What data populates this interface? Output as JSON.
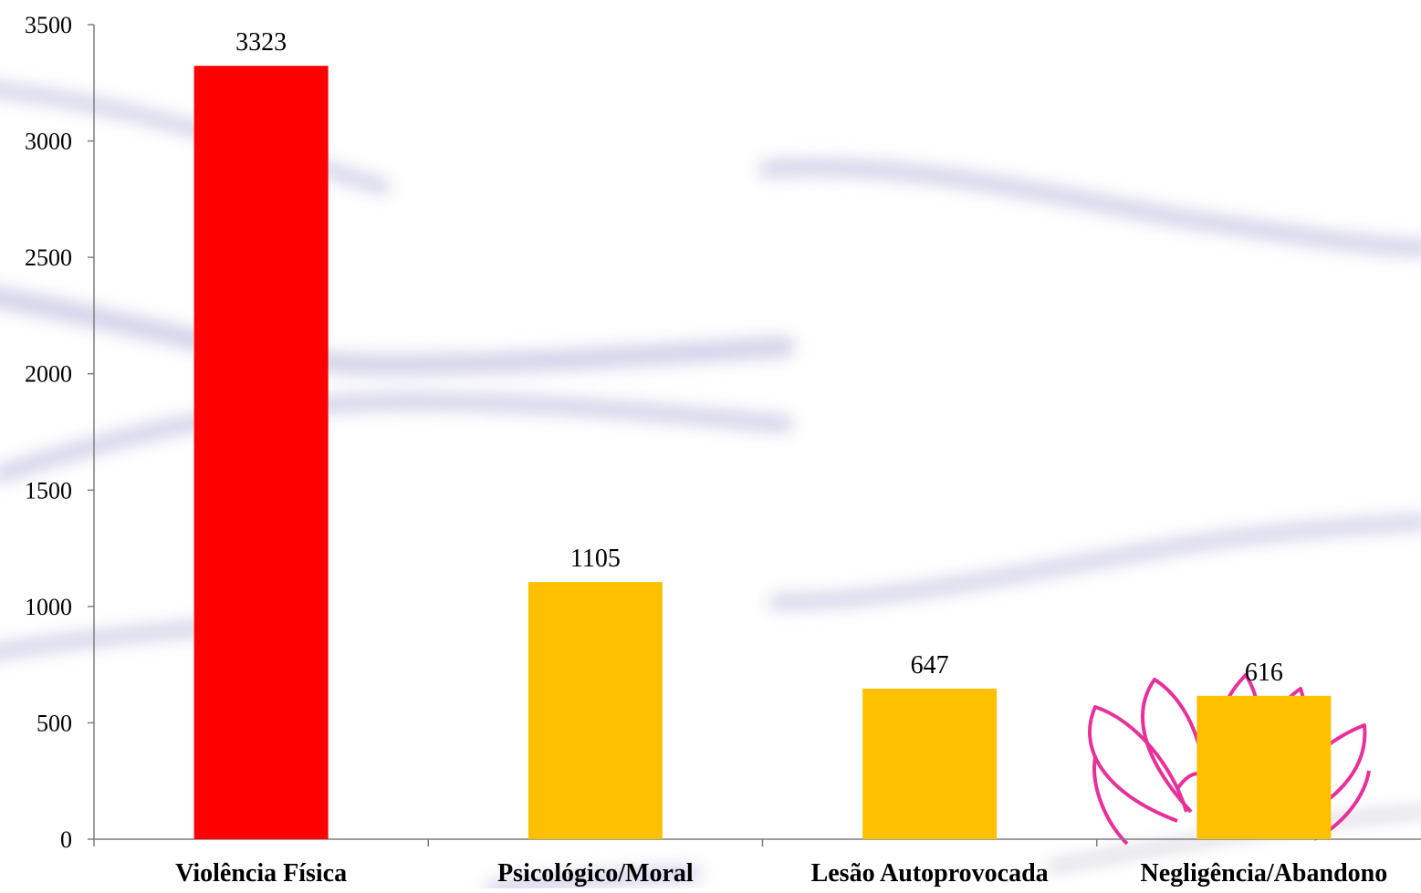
{
  "chart_data": {
    "type": "bar",
    "title": "",
    "xlabel": "",
    "ylabel": "",
    "categories": [
      "Violência Física",
      "Psicológico/Moral",
      "Lesão Autoprovocada",
      "Negligência/Abandono"
    ],
    "values": [
      3323,
      1105,
      647,
      616
    ],
    "data_labels": [
      "3323",
      "1105",
      "647",
      "616"
    ],
    "bar_colors": [
      "#ff0000",
      "#ffc000",
      "#ffc000",
      "#ffc000"
    ],
    "ylim": [
      0,
      3500
    ],
    "yticks": [
      0,
      500,
      1000,
      1500,
      2000,
      2500,
      3000,
      3500
    ],
    "ytick_labels": [
      "0",
      "500",
      "1000",
      "1500",
      "2000",
      "2500",
      "3000",
      "3500"
    ],
    "grid": false,
    "legend": "none"
  },
  "decorations": {
    "background_streak_color": "#a9a9d6",
    "watermark_icon": "lotus-flower-icon",
    "watermark_color": "#e8309a"
  }
}
